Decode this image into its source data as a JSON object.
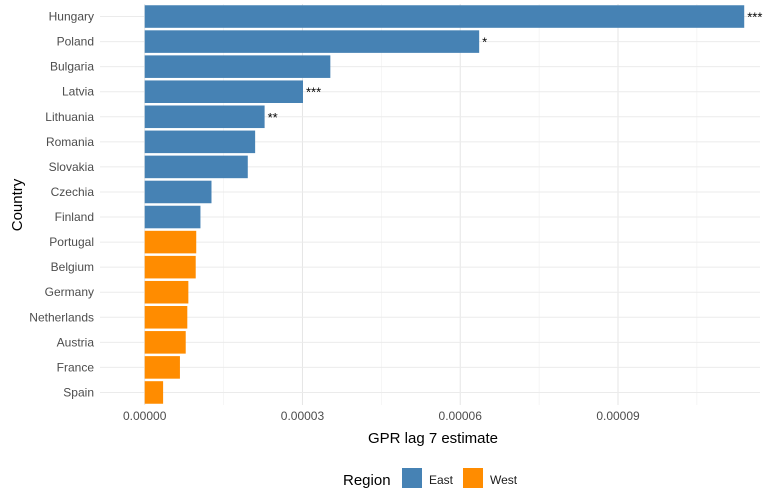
{
  "chart_data": {
    "type": "bar",
    "orientation": "horizontal",
    "xlabel": "GPR lag 7 estimate",
    "ylabel": "Country",
    "xlim": [
      -8.5e-06,
      0.000117
    ],
    "xticks": [
      0.0,
      3e-05,
      6e-05,
      9e-05
    ],
    "xtick_labels": [
      "0.00000",
      "0.00003",
      "0.00006",
      "0.00009"
    ],
    "grid": true,
    "legend_placement": "bottom",
    "legend": {
      "title": "Region",
      "entries": [
        {
          "name": "East",
          "color": "#4682B4"
        },
        {
          "name": "West",
          "color": "#FF8C00"
        }
      ]
    },
    "bars": [
      {
        "category": "Hungary",
        "value": 0.000114,
        "region": "East",
        "sig": "***"
      },
      {
        "category": "Poland",
        "value": 6.36e-05,
        "region": "East",
        "sig": "*"
      },
      {
        "category": "Bulgaria",
        "value": 3.53e-05,
        "region": "East",
        "sig": ""
      },
      {
        "category": "Latvia",
        "value": 3.01e-05,
        "region": "East",
        "sig": "***"
      },
      {
        "category": "Lithuania",
        "value": 2.28e-05,
        "region": "East",
        "sig": "**"
      },
      {
        "category": "Romania",
        "value": 2.1e-05,
        "region": "East",
        "sig": ""
      },
      {
        "category": "Slovakia",
        "value": 1.96e-05,
        "region": "East",
        "sig": ""
      },
      {
        "category": "Czechia",
        "value": 1.27e-05,
        "region": "East",
        "sig": ""
      },
      {
        "category": "Finland",
        "value": 1.06e-05,
        "region": "East",
        "sig": ""
      },
      {
        "category": "Portugal",
        "value": 9.8e-06,
        "region": "West",
        "sig": ""
      },
      {
        "category": "Belgium",
        "value": 9.7e-06,
        "region": "West",
        "sig": ""
      },
      {
        "category": "Germany",
        "value": 8.3e-06,
        "region": "West",
        "sig": ""
      },
      {
        "category": "Netherlands",
        "value": 8.1e-06,
        "region": "West",
        "sig": ""
      },
      {
        "category": "Austria",
        "value": 7.8e-06,
        "region": "West",
        "sig": ""
      },
      {
        "category": "France",
        "value": 6.7e-06,
        "region": "West",
        "sig": ""
      },
      {
        "category": "Spain",
        "value": 3.5e-06,
        "region": "West",
        "sig": ""
      }
    ]
  }
}
